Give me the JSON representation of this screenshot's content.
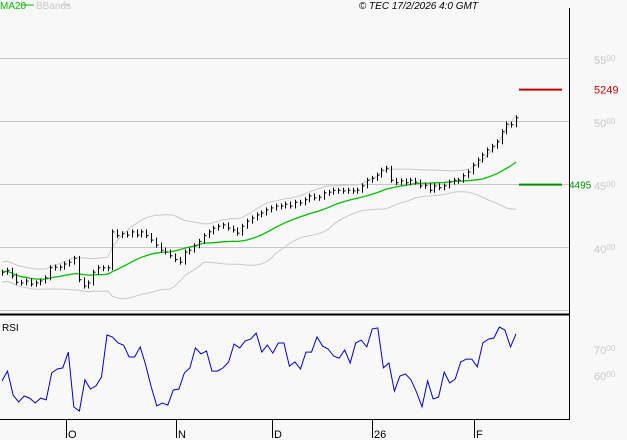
{
  "header": {
    "ma_label": "MA20",
    "bb_label": "BBands",
    "copyright": "© TEC 17/2/2026 4:0 GMT"
  },
  "colors": {
    "price": "#000000",
    "ma": "#00c000",
    "bbands": "#c8c8c8",
    "rsi": "#0000d0",
    "resistance": "#cc0000",
    "support": "#009000",
    "grid": "#c8c8c8",
    "axis_labels": "#c8c8c8"
  },
  "chart_data": [
    {
      "type": "bar",
      "subtype": "ohlc-price",
      "ylim": [
        3500,
        5750
      ],
      "yticks": [
        {
          "value": 5500,
          "major": "55",
          "minor": "00"
        },
        {
          "value": 5000,
          "major": "50",
          "minor": "00"
        },
        {
          "value": 4500,
          "major": "45",
          "minor": "00"
        },
        {
          "value": 4000,
          "major": "40",
          "minor": "00"
        }
      ],
      "grid": true,
      "close": [
        3800,
        3815,
        3770,
        3720,
        3715,
        3730,
        3705,
        3715,
        3730,
        3755,
        3835,
        3840,
        3840,
        3865,
        3880,
        3910,
        3740,
        3690,
        3715,
        3800,
        3835,
        3835,
        3835,
        4120,
        4090,
        4105,
        4095,
        4120,
        4095,
        4120,
        4090,
        4055,
        4015,
        3975,
        3960,
        3930,
        3900,
        3880,
        3960,
        3975,
        4010,
        4045,
        4090,
        4120,
        4150,
        4165,
        4175,
        4150,
        4135,
        4110,
        4165,
        4205,
        4230,
        4255,
        4270,
        4295,
        4310,
        4325,
        4325,
        4340,
        4325,
        4355,
        4350,
        4375,
        4405,
        4390,
        4395,
        4430,
        4435,
        4450,
        4450,
        4445,
        4450,
        4445,
        4450,
        4485,
        4530,
        4545,
        4570,
        4610,
        4625,
        4530,
        4510,
        4525,
        4510,
        4530,
        4515,
        4485,
        4490,
        4450,
        4485,
        4470,
        4485,
        4515,
        4530,
        4530,
        4565,
        4595,
        4650,
        4690,
        4730,
        4770,
        4800,
        4835,
        4915,
        4975,
        4970,
        5025
      ],
      "indicators": {
        "ma_period": 20,
        "bbands_period": 20
      },
      "levels": [
        {
          "name": "resistance",
          "value": 5249,
          "label": "5249"
        },
        {
          "name": "support",
          "value": 4495,
          "label": "4495"
        }
      ]
    },
    {
      "type": "line",
      "title": "RSI",
      "yticks": [
        {
          "value": 70,
          "major": "70",
          "minor": "00"
        },
        {
          "value": 60,
          "major": "60",
          "minor": "00"
        }
      ],
      "values": [
        58.1,
        61.9,
        52.7,
        50,
        52.3,
        51.5,
        49.6,
        51.5,
        50.8,
        61.2,
        62.7,
        63.1,
        69.2,
        48.1,
        46.5,
        58.5,
        55,
        56.2,
        59.6,
        75.8,
        75,
        72.7,
        71.9,
        67.3,
        67.3,
        71.2,
        64.2,
        55.8,
        48.5,
        49.6,
        48.8,
        54.6,
        55,
        61.2,
        63.1,
        70.8,
        68.5,
        69.6,
        61.9,
        61.9,
        63.1,
        65.4,
        72.3,
        70.8,
        73.5,
        74.2,
        76.5,
        69.2,
        71.9,
        68.8,
        72.7,
        72.7,
        63.8,
        65.4,
        62.7,
        69.2,
        69.2,
        75,
        71.5,
        70.4,
        67.7,
        66.9,
        70,
        65,
        72.7,
        73.8,
        71.2,
        78.1,
        78.5,
        63.1,
        65,
        54.2,
        60,
        60.8,
        58.5,
        53.8,
        48.1,
        58.1,
        51.2,
        51.9,
        61.5,
        57.3,
        58.8,
        65.4,
        66.5,
        66.5,
        63.5,
        72.7,
        74.2,
        74.6,
        78.8,
        77.7,
        71.2,
        76.2
      ]
    }
  ],
  "xaxis": {
    "ticks": [
      {
        "label": "O"
      },
      {
        "label": "N"
      },
      {
        "label": "D"
      },
      {
        "label": "26"
      },
      {
        "label": "F"
      }
    ]
  }
}
